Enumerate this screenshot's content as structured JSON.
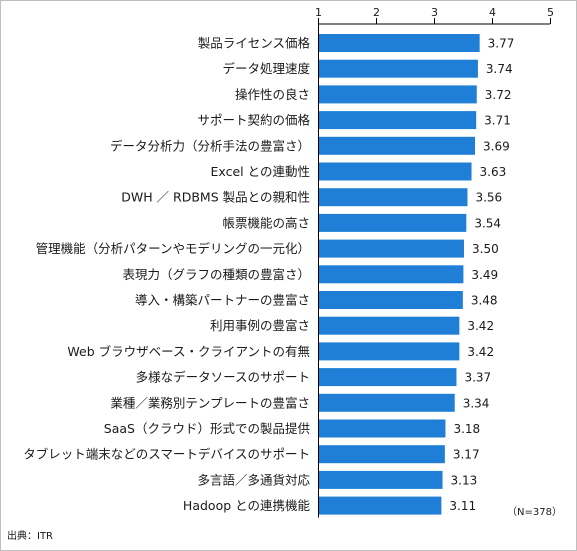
{
  "chart_data": {
    "type": "bar",
    "orientation": "horizontal",
    "categories": [
      "製品ライセンス価格",
      "データ処理速度",
      "操作性の良さ",
      "サポート契約の価格",
      "データ分析力（分析手法の豊富さ）",
      "Excel との連動性",
      "DWH ／ RDBMS 製品との親和性",
      "帳票機能の高さ",
      "管理機能（分析パターンやモデリングの一元化）",
      "表現力（グラフの種類の豊富さ）",
      "導入・構築パートナーの豊富さ",
      "利用事例の豊富さ",
      "Web ブラウザベース・クライアントの有無",
      "多様なデータソースのサポート",
      "業種／業務別テンプレートの豊富さ",
      "SaaS（クラウド）形式での製品提供",
      "タブレット端末などのスマートデバイスのサポート",
      "多言語／多通貨対応",
      "Hadoop との連携機能"
    ],
    "values": [
      3.77,
      3.74,
      3.72,
      3.71,
      3.69,
      3.63,
      3.56,
      3.54,
      3.5,
      3.49,
      3.48,
      3.42,
      3.42,
      3.37,
      3.34,
      3.18,
      3.17,
      3.13,
      3.11
    ],
    "value_labels": [
      "3.77",
      "3.74",
      "3.72",
      "3.71",
      "3.69",
      "3.63",
      "3.56",
      "3.54",
      "3.50",
      "3.49",
      "3.48",
      "3.42",
      "3.42",
      "3.37",
      "3.34",
      "3.18",
      "3.17",
      "3.13",
      "3.11"
    ],
    "xlim": [
      1,
      5
    ],
    "xticks": [
      "1",
      "2",
      "3",
      "4",
      "5"
    ],
    "axis_position": "top",
    "grid": false,
    "bar_color": "#1f7fd6",
    "axis_color": "#000000",
    "title": "",
    "xlabel": "",
    "ylabel": ""
  },
  "notes": {
    "sample_size": "（N=378）",
    "source": "出典：ITR"
  }
}
